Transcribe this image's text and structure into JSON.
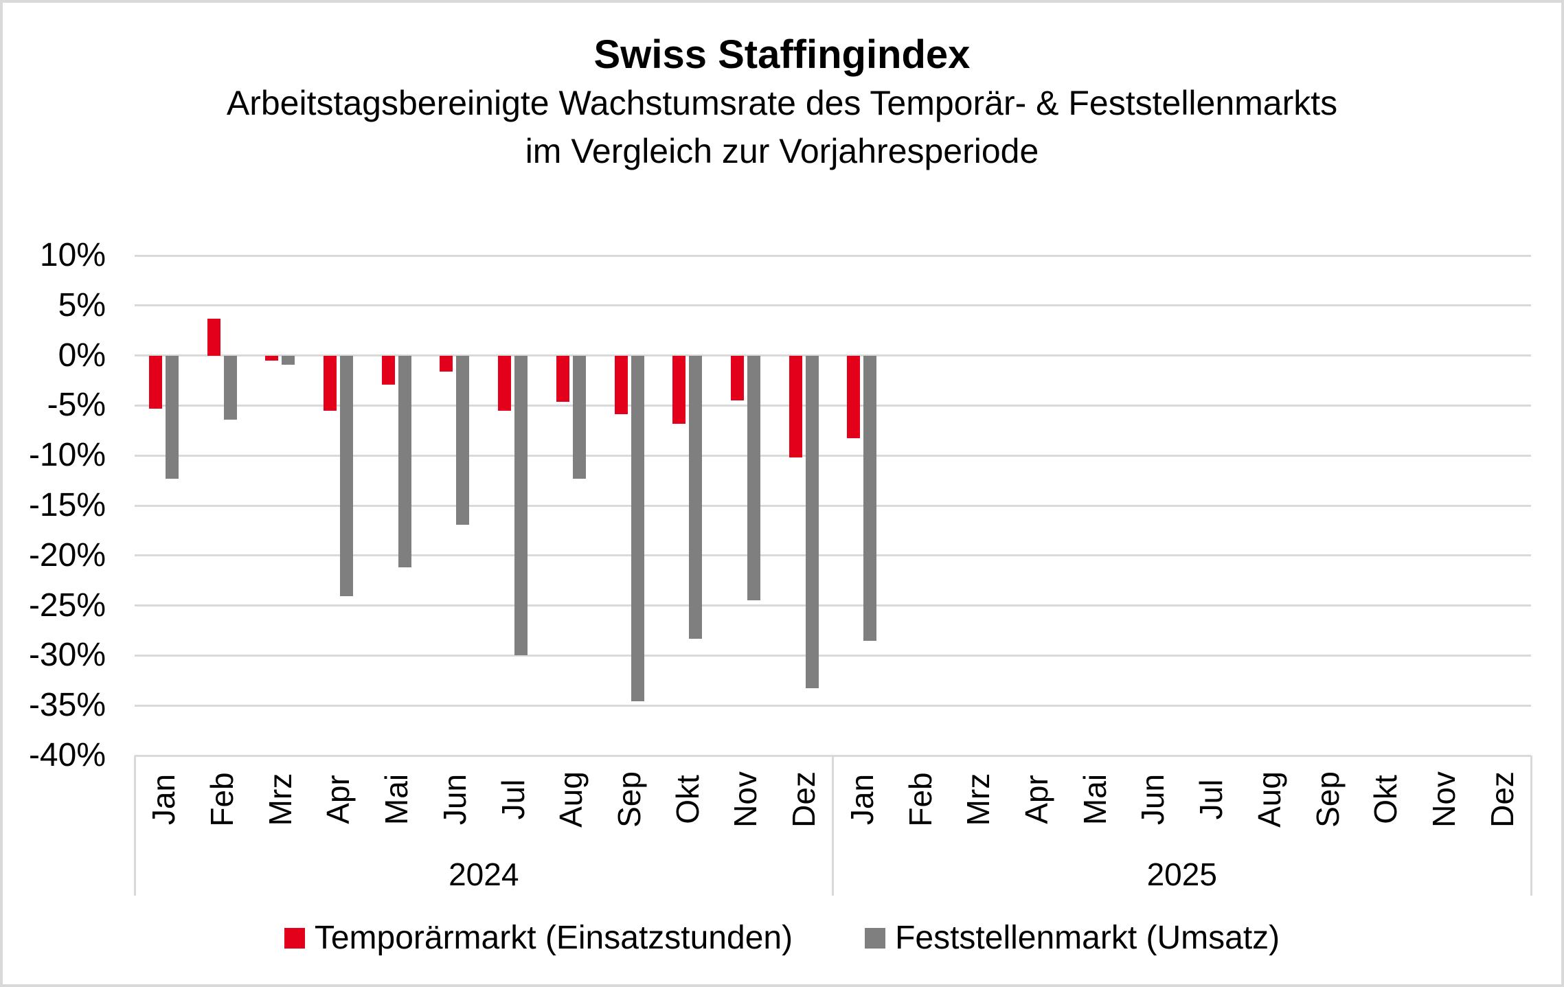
{
  "chart": {
    "title": "Swiss Staffingindex",
    "subtitle_line1": "Arbeitstagsbereinigte Wachstumsrate des Temporär- & Feststellenmarkts",
    "subtitle_line2": "im Vergleich zur Vorjahresperiode"
  },
  "chart_data": {
    "type": "bar",
    "title": "Swiss Staffingindex",
    "subtitle": "Arbeitstagsbereinigte Wachstumsrate des Temporär- & Feststellenmarkts im Vergleich zur Vorjahresperiode",
    "categories": [
      "Jan",
      "Feb",
      "Mrz",
      "Apr",
      "Mai",
      "Jun",
      "Jul",
      "Aug",
      "Sep",
      "Okt",
      "Nov",
      "Dez",
      "Jan",
      "Feb",
      "Mrz",
      "Apr",
      "Mai",
      "Jun",
      "Jul",
      "Aug",
      "Sep",
      "Okt",
      "Nov",
      "Dez"
    ],
    "category_years": [
      {
        "label": "2024",
        "span": 12
      },
      {
        "label": "2025",
        "span": 12
      }
    ],
    "series": [
      {
        "name": "Temporärmarkt (Einsatzstunden)",
        "color": "#e2001a",
        "values": [
          -5.3,
          3.7,
          -0.5,
          -5.5,
          -2.9,
          -1.6,
          -5.5,
          -4.6,
          -5.9,
          -6.8,
          -4.5,
          -10.2,
          -8.3,
          null,
          null,
          null,
          null,
          null,
          null,
          null,
          null,
          null,
          null,
          null
        ]
      },
      {
        "name": "Feststellenmarkt (Umsatz)",
        "color": "#7f7f7f",
        "values": [
          -12.3,
          -6.4,
          -0.9,
          -24.1,
          -21.2,
          -16.9,
          -30.0,
          -12.3,
          -34.6,
          -28.3,
          -24.5,
          -33.3,
          -28.5,
          null,
          null,
          null,
          null,
          null,
          null,
          null,
          null,
          null,
          null,
          null
        ]
      }
    ],
    "ylim": [
      -40,
      10
    ],
    "ytick_step": 5,
    "ytick_suffix": "%",
    "grid": true,
    "legend_position": "bottom",
    "gridline_color": "#d9d9d9"
  }
}
